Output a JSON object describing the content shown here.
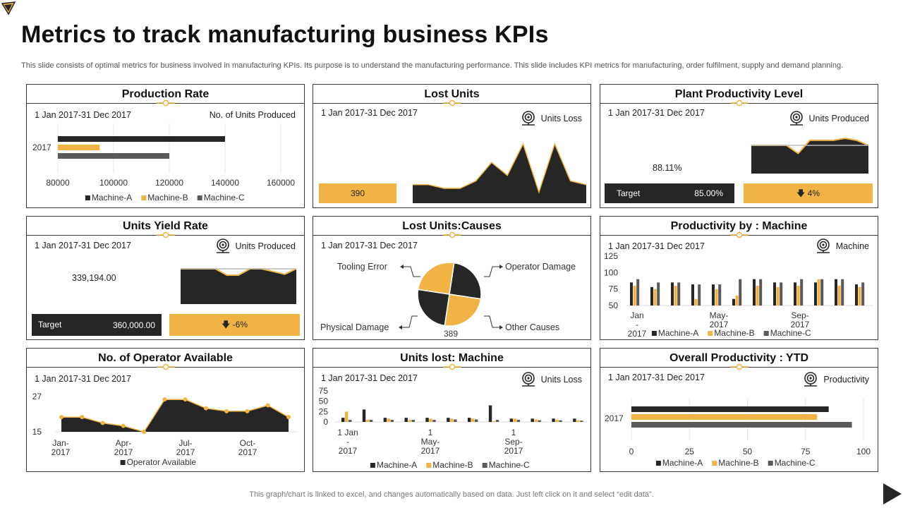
{
  "page": {
    "title": "Metrics to track manufacturing business KPIs",
    "subtitle": "This slide consists of optimal metrics for business involved in manufacturing KPIs. Its purpose is to understand the manufacturing performance. This slide includes KPI metrics for manufacturing, order fulfilment, supply and demand planning.",
    "footer": "This graph/chart is linked to excel,  and changes automatically based on data. Just left click on it and select “edit data”."
  },
  "colors": {
    "dark": "#262626",
    "gold": "#f1b343",
    "gray": "#595959"
  },
  "panels": {
    "production_rate": {
      "title": "Production Rate",
      "date": "1 Jan 2017-31 Dec 2017",
      "metric": "No. of Units Produced"
    },
    "lost_units": {
      "title": "Lost Units",
      "date": "1 Jan 2017-31 Dec 2017",
      "metric": "Units Loss",
      "value": "390"
    },
    "plant_productivity": {
      "title": "Plant Productivity Level",
      "date": "1 Jan 2017-31 Dec 2017",
      "metric": "Units Produced",
      "value": "88.11%",
      "target_label": "Target",
      "target_value": "85.00%",
      "delta": "4%"
    },
    "units_yield": {
      "title": "Units Yield Rate",
      "date": "1 Jan 2017-31 Dec 2017",
      "metric": "Units Produced",
      "value": "339,194.00",
      "target_label": "Target",
      "target_value": "360,000.00",
      "delta": "-6%"
    },
    "lost_units_causes": {
      "title": "Lost Units:Causes",
      "date": "1 Jan 2017-31 Dec 2017"
    },
    "productivity_machine": {
      "title": "Productivity by : Machine",
      "date": "1 Jan 2017-31 Dec 2017",
      "metric": "Machine"
    },
    "operator_available": {
      "title": "No. of Operator Available",
      "date": "1 Jan 2017-31 Dec 2017"
    },
    "units_lost_machine": {
      "title": "Units lost: Machine",
      "date": "1 Jan 2017-31 Dec 2017",
      "metric": "Units Loss"
    },
    "overall_productivity": {
      "title": "Overall Productivity : YTD",
      "date": "1 Jan 2017-31 Dec 2017",
      "metric": "Productivity"
    }
  },
  "chart_data": [
    {
      "id": "production_rate",
      "type": "bar",
      "orientation": "horizontal",
      "categories": [
        "2017"
      ],
      "series": [
        {
          "name": "Machine-A",
          "values": [
            140000
          ]
        },
        {
          "name": "Machine-B",
          "values": [
            95000
          ]
        },
        {
          "name": "Machine-C",
          "values": [
            120000
          ]
        }
      ],
      "xlim": [
        80000,
        160000
      ],
      "xticks": [
        "80000",
        "100000",
        "120000",
        "140000",
        "160000"
      ],
      "legend": "bottom"
    },
    {
      "id": "lost_units",
      "type": "area",
      "values": [
        10,
        10,
        8,
        8,
        12,
        22,
        15,
        32,
        6,
        32,
        12,
        10
      ]
    },
    {
      "id": "plant_productivity",
      "type": "area",
      "values": [
        88,
        88,
        88,
        88,
        80,
        93,
        93,
        93,
        95,
        93,
        88
      ],
      "target": 88
    },
    {
      "id": "units_yield",
      "type": "area",
      "values": [
        339,
        339,
        339,
        339,
        332,
        332,
        339,
        339,
        336,
        333,
        339
      ],
      "target": 339
    },
    {
      "id": "lost_units_causes",
      "type": "pie",
      "labels": [
        "Operator Damage",
        "Other Causes",
        "Physical Damage",
        "Tooling Error"
      ],
      "values": [
        25,
        25,
        25,
        25
      ],
      "center_label": "389"
    },
    {
      "id": "productivity_machine",
      "type": "bar",
      "categories": [
        "Jan - 2017",
        "",
        "",
        "",
        "May- 2017",
        "",
        "",
        "",
        "Sep- 2017",
        "",
        "",
        ""
      ],
      "tick_labels": [
        [
          "Jan",
          "-",
          "2017"
        ],
        [
          "May-",
          "2017"
        ],
        [
          "Sep-",
          "2017"
        ]
      ],
      "series": [
        {
          "name": "Machine-A",
          "values": [
            85,
            78,
            85,
            82,
            82,
            60,
            90,
            85,
            85,
            85,
            90,
            82
          ]
        },
        {
          "name": "Machine-B",
          "values": [
            80,
            75,
            80,
            60,
            75,
            65,
            80,
            78,
            80,
            90,
            80,
            78
          ]
        },
        {
          "name": "Machine-C",
          "values": [
            90,
            85,
            85,
            82,
            82,
            90,
            90,
            85,
            90,
            90,
            90,
            85
          ]
        }
      ],
      "ylim": [
        50,
        125
      ],
      "yticks": [
        "50",
        "75",
        "100",
        "125"
      ],
      "legend": "bottom"
    },
    {
      "id": "operator_available",
      "type": "area",
      "categories": [
        "Jan-2017",
        "",
        "",
        "Apr-2017",
        "",
        "",
        "Jul-2017",
        "",
        "",
        "Oct-2017",
        "",
        ""
      ],
      "tick_labels": [
        [
          "Jan-",
          "2017"
        ],
        [
          "Apr-",
          "2017"
        ],
        [
          "Jul-",
          "2017"
        ],
        [
          "Oct-",
          "2017"
        ]
      ],
      "series": [
        {
          "name": "Operator Available",
          "values": [
            20,
            20,
            18,
            17,
            15,
            26,
            26,
            23,
            22,
            22,
            24,
            20
          ]
        }
      ],
      "ylim": [
        15,
        27
      ],
      "yticks": [
        "15",
        "27"
      ],
      "legend": "bottom"
    },
    {
      "id": "units_lost_machine",
      "type": "bar",
      "tick_labels": [
        [
          "1 Jan",
          "-",
          "2017"
        ],
        [
          "1",
          "May-",
          "2017"
        ],
        [
          "1",
          "Sep-",
          "2017"
        ]
      ],
      "series": [
        {
          "name": "Machine-A",
          "values": [
            10,
            30,
            10,
            10,
            10,
            10,
            10,
            40,
            8,
            8,
            8,
            8
          ]
        },
        {
          "name": "Machine-B",
          "values": [
            25,
            5,
            8,
            5,
            8,
            8,
            8,
            2,
            8,
            6,
            5,
            4
          ]
        },
        {
          "name": "Machine-C",
          "values": [
            5,
            5,
            5,
            5,
            5,
            6,
            6,
            5,
            5,
            4,
            4,
            3
          ]
        }
      ],
      "ylim": [
        0,
        75
      ],
      "yticks": [
        "0",
        "25",
        "50",
        "75"
      ],
      "legend": "bottom"
    },
    {
      "id": "overall_productivity",
      "type": "bar",
      "orientation": "horizontal",
      "categories": [
        "2017"
      ],
      "series": [
        {
          "name": "Machine-A",
          "values": [
            85
          ]
        },
        {
          "name": "Machine-B",
          "values": [
            80
          ]
        },
        {
          "name": "Machine-C",
          "values": [
            95
          ]
        }
      ],
      "xlim": [
        0,
        100
      ],
      "xticks": [
        "0",
        "25",
        "50",
        "75",
        "100"
      ],
      "legend": "bottom"
    }
  ]
}
